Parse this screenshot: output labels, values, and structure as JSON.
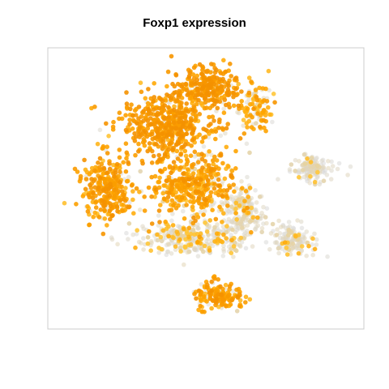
{
  "chart_data": {
    "type": "scatter",
    "title": "Foxp1 expression",
    "xlabel": "",
    "ylabel": "",
    "grid": false,
    "legend": "none",
    "axes_visible": false,
    "colors": {
      "low": "#d9d9d9",
      "mid": "#ffc83c",
      "high": "#ffa500",
      "max": "#e06c00",
      "panel_border": "#cccccc"
    },
    "value_range": [
      0,
      1
    ],
    "regions": [
      {
        "name": "upper-left-cluster",
        "center": [
          0.38,
          0.72
        ],
        "spread": [
          0.14,
          0.1
        ],
        "count": 520,
        "expression": 0.85
      },
      {
        "name": "upper-top-cluster",
        "center": [
          0.5,
          0.86
        ],
        "spread": [
          0.1,
          0.06
        ],
        "count": 260,
        "expression": 0.86
      },
      {
        "name": "upper-right-lobe",
        "center": [
          0.66,
          0.79
        ],
        "spread": [
          0.05,
          0.07
        ],
        "count": 110,
        "expression": 0.6
      },
      {
        "name": "left-middle-cluster",
        "center": [
          0.19,
          0.5
        ],
        "spread": [
          0.08,
          0.1
        ],
        "count": 300,
        "expression": 0.78
      },
      {
        "name": "center-cluster",
        "center": [
          0.46,
          0.51
        ],
        "spread": [
          0.13,
          0.1
        ],
        "count": 420,
        "expression": 0.72
      },
      {
        "name": "center-grey-band",
        "center": [
          0.46,
          0.32
        ],
        "spread": [
          0.16,
          0.05
        ],
        "count": 320,
        "expression": 0.3
      },
      {
        "name": "right-center-grey",
        "center": [
          0.62,
          0.42
        ],
        "spread": [
          0.06,
          0.08
        ],
        "count": 180,
        "expression": 0.22
      },
      {
        "name": "right-far-island",
        "center": [
          0.84,
          0.57
        ],
        "spread": [
          0.06,
          0.04
        ],
        "count": 140,
        "expression": 0.12
      },
      {
        "name": "right-low-island",
        "center": [
          0.78,
          0.32
        ],
        "spread": [
          0.06,
          0.05
        ],
        "count": 150,
        "expression": 0.2
      },
      {
        "name": "bottom-island",
        "center": [
          0.54,
          0.12
        ],
        "spread": [
          0.07,
          0.045
        ],
        "count": 170,
        "expression": 0.75
      }
    ]
  }
}
